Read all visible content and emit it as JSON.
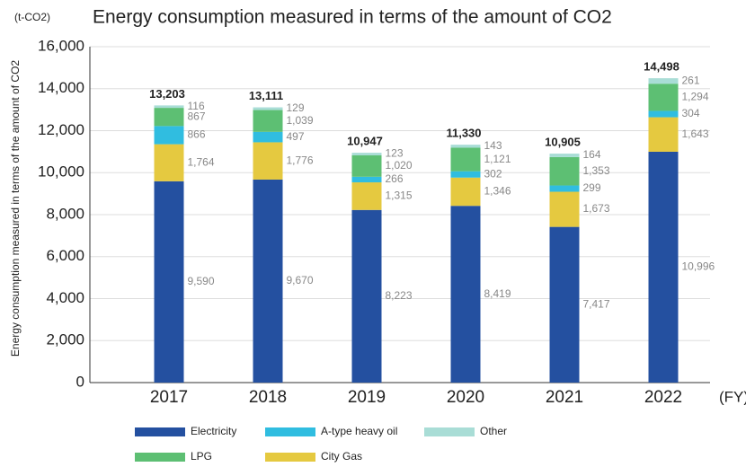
{
  "chart_data": {
    "type": "stacked_bar",
    "title": "Energy consumption measured in terms of the amount of CO2",
    "unit_label": "(t-CO2)",
    "y_axis_label": "Energy consumption measured in terms of the amount of CO2",
    "x_unit_label": "(FY)",
    "categories": [
      "2017",
      "2018",
      "2019",
      "2020",
      "2021",
      "2022"
    ],
    "series": [
      {
        "name": "Electricity",
        "color": "#2450a0",
        "values": [
          9590,
          9670,
          8223,
          8419,
          7417,
          10996
        ],
        "value_labels": [
          "9,590",
          "9,670",
          "8,223",
          "8,419",
          "7,417",
          "10,996"
        ]
      },
      {
        "name": "City Gas",
        "color": "#e5c940",
        "values": [
          1764,
          1776,
          1315,
          1346,
          1673,
          1643
        ],
        "value_labels": [
          "1,764",
          "1,776",
          "1,315",
          "1,346",
          "1,673",
          "1,643"
        ]
      },
      {
        "name": "A-type heavy oil",
        "color": "#30bde0",
        "values": [
          866,
          497,
          266,
          302,
          299,
          304
        ]
      },
      {
        "name": "LPG",
        "color": "#5dbf73",
        "values": [
          867,
          1039,
          1020,
          1121,
          1353,
          1294
        ],
        "value_labels": [
          "867",
          "1,039",
          "1,020",
          "1,121",
          "1,353",
          "1,294"
        ]
      },
      {
        "name": "Other",
        "color": "#a9ddd6",
        "values": [
          116,
          129,
          123,
          143,
          164,
          261
        ]
      }
    ],
    "totals": {
      "values": [
        13203,
        13111,
        10947,
        11330,
        10905,
        14498
      ],
      "value_labels": [
        "13,203",
        "13,111",
        "10,947",
        "11,330",
        "10,905",
        "14,498"
      ]
    },
    "ylim": [
      0,
      16000
    ],
    "yticks": [
      0,
      {
        "value": 2000,
        "label": "2,000"
      },
      {
        "value": 4000,
        "label": "4,000"
      },
      {
        "value": 6000,
        "label": "6,000"
      },
      {
        "value": 8000,
        "label": "8,000"
      },
      {
        "value": 10000,
        "label": "10,000"
      },
      {
        "value": 12000,
        "label": "12,000"
      },
      {
        "value": 14000,
        "label": "14,000"
      },
      {
        "value": 16000,
        "label": "16,000"
      }
    ],
    "grid": true
  }
}
